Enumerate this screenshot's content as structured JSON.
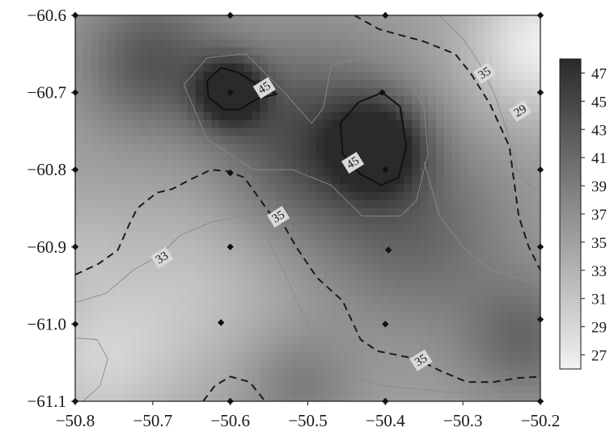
{
  "chart_data": {
    "type": "heatmap",
    "subtype": "filled-contour",
    "title": "",
    "xlabel": "",
    "ylabel": "",
    "xlim": [
      -50.8,
      -50.2
    ],
    "ylim": [
      -61.1,
      -60.6
    ],
    "x_ticks": [
      "−50.8",
      "−50.7",
      "−50.6",
      "−50.5",
      "−50.4",
      "−50.3",
      "−50.2"
    ],
    "y_ticks": [
      "−60.6",
      "−60.7",
      "−60.8",
      "−60.9",
      "−61.0",
      "−61.1"
    ],
    "colorbar": {
      "min": 26,
      "max": 48,
      "ticks": [
        "47",
        "45",
        "43",
        "41",
        "39",
        "37",
        "35",
        "33",
        "31",
        "29",
        "27"
      ],
      "color_low": "#f2f2f2",
      "color_high": "#2a2a2a"
    },
    "contour_labels": [
      {
        "text": "45",
        "x": -50.556,
        "y": -60.694,
        "level": 45
      },
      {
        "text": "45",
        "x": -50.442,
        "y": -60.791,
        "level": 45
      },
      {
        "text": "35",
        "x": -50.272,
        "y": -60.675,
        "level": 35
      },
      {
        "text": "35",
        "x": -50.538,
        "y": -60.861,
        "level": 35
      },
      {
        "text": "35",
        "x": -50.354,
        "y": -61.047,
        "level": 35
      },
      {
        "text": "33",
        "x": -50.688,
        "y": -60.914,
        "level": 33
      },
      {
        "text": "29",
        "x": -50.226,
        "y": -60.724,
        "level": 29
      }
    ],
    "sample_points": [
      {
        "x": -50.8,
        "y": -60.6
      },
      {
        "x": -50.6,
        "y": -60.6
      },
      {
        "x": -50.4,
        "y": -60.6
      },
      {
        "x": -50.2,
        "y": -60.6
      },
      {
        "x": -50.8,
        "y": -60.7
      },
      {
        "x": -50.6,
        "y": -60.7
      },
      {
        "x": -50.404,
        "y": -60.7
      },
      {
        "x": -50.2,
        "y": -60.7
      },
      {
        "x": -50.8,
        "y": -60.8
      },
      {
        "x": -50.6,
        "y": -60.804
      },
      {
        "x": -50.4,
        "y": -60.8
      },
      {
        "x": -50.2,
        "y": -60.8
      },
      {
        "x": -50.8,
        "y": -60.9
      },
      {
        "x": -50.6,
        "y": -60.9
      },
      {
        "x": -50.396,
        "y": -60.904
      },
      {
        "x": -50.2,
        "y": -60.9
      },
      {
        "x": -50.8,
        "y": -61.0
      },
      {
        "x": -50.612,
        "y": -60.998
      },
      {
        "x": -50.4,
        "y": -61.0
      },
      {
        "x": -50.2,
        "y": -60.994
      },
      {
        "x": -50.8,
        "y": -61.1
      },
      {
        "x": -50.6,
        "y": -61.1
      },
      {
        "x": -50.4,
        "y": -61.1
      },
      {
        "x": -50.2,
        "y": -61.1
      }
    ],
    "contours": [
      {
        "level": 45,
        "style": "solid",
        "points": [
          [
            -50.63,
            -60.685
          ],
          [
            -50.612,
            -60.668
          ],
          [
            -50.59,
            -60.674
          ],
          [
            -50.562,
            -60.692
          ],
          [
            -50.54,
            -60.702
          ],
          [
            -50.565,
            -60.708
          ],
          [
            -50.588,
            -60.722
          ],
          [
            -50.608,
            -60.722
          ],
          [
            -50.628,
            -60.706
          ],
          [
            -50.63,
            -60.685
          ]
        ]
      },
      {
        "level": 45,
        "style": "solid",
        "points": [
          [
            -50.404,
            -60.7
          ],
          [
            -50.435,
            -60.713
          ],
          [
            -50.458,
            -60.74
          ],
          [
            -50.455,
            -60.78
          ],
          [
            -50.432,
            -60.806
          ],
          [
            -50.405,
            -60.82
          ],
          [
            -50.383,
            -60.81
          ],
          [
            -50.373,
            -60.77
          ],
          [
            -50.381,
            -60.718
          ],
          [
            -50.404,
            -60.7
          ]
        ]
      },
      {
        "level": 35,
        "style": "dashed",
        "points": [
          [
            -50.44,
            -60.6
          ],
          [
            -50.408,
            -60.618
          ],
          [
            -50.35,
            -60.634
          ],
          [
            -50.31,
            -60.65
          ],
          [
            -50.29,
            -60.675
          ],
          [
            -50.265,
            -60.715
          ],
          [
            -50.24,
            -60.77
          ],
          [
            -50.228,
            -60.86
          ],
          [
            -50.215,
            -60.9
          ],
          [
            -50.2,
            -60.93
          ]
        ]
      },
      {
        "level": 35,
        "style": "dashed",
        "points": [
          [
            -50.8,
            -60.936
          ],
          [
            -50.77,
            -60.922
          ],
          [
            -50.745,
            -60.904
          ],
          [
            -50.73,
            -60.87
          ],
          [
            -50.72,
            -60.85
          ],
          [
            -50.695,
            -60.83
          ],
          [
            -50.675,
            -60.825
          ],
          [
            -50.65,
            -60.812
          ],
          [
            -50.625,
            -60.8
          ],
          [
            -50.603,
            -60.802
          ],
          [
            -50.582,
            -60.81
          ],
          [
            -50.55,
            -60.855
          ],
          [
            -50.532,
            -60.87
          ],
          [
            -50.515,
            -60.9
          ],
          [
            -50.488,
            -60.94
          ],
          [
            -50.455,
            -60.97
          ],
          [
            -50.432,
            -61.02
          ],
          [
            -50.41,
            -61.035
          ],
          [
            -50.36,
            -61.045
          ],
          [
            -50.33,
            -61.06
          ],
          [
            -50.295,
            -61.075
          ],
          [
            -50.26,
            -61.075
          ],
          [
            -50.23,
            -61.07
          ],
          [
            -50.2,
            -61.068
          ]
        ]
      },
      {
        "level": 35,
        "style": "dashed",
        "points": [
          [
            -50.635,
            -61.1
          ],
          [
            -50.62,
            -61.08
          ],
          [
            -50.6,
            -61.068
          ],
          [
            -50.575,
            -61.075
          ],
          [
            -50.555,
            -61.1
          ]
        ]
      },
      {
        "level": 33,
        "style": "thin",
        "points": [
          [
            -50.8,
            -60.972
          ],
          [
            -50.76,
            -60.96
          ],
          [
            -50.725,
            -60.93
          ],
          [
            -50.69,
            -60.91
          ],
          [
            -50.665,
            -60.885
          ],
          [
            -50.625,
            -60.868
          ],
          [
            -50.585,
            -60.86
          ],
          [
            -50.56,
            -60.875
          ],
          [
            -50.532,
            -60.93
          ],
          [
            -50.505,
            -60.99
          ],
          [
            -50.48,
            -61.04
          ],
          [
            -50.44,
            -61.07
          ],
          [
            -50.4,
            -61.08
          ],
          [
            -50.35,
            -61.085
          ],
          [
            -50.3,
            -61.09
          ],
          [
            -50.25,
            -61.093
          ]
        ]
      },
      {
        "level": 33,
        "style": "thin",
        "points": [
          [
            -50.8,
            -61.018
          ],
          [
            -50.772,
            -61.02
          ],
          [
            -50.758,
            -61.045
          ],
          [
            -50.768,
            -61.08
          ],
          [
            -50.79,
            -61.1
          ]
        ]
      },
      {
        "level": 39,
        "style": "thin",
        "points": [
          [
            -50.63,
            -60.76
          ],
          [
            -50.66,
            -60.69
          ],
          [
            -50.63,
            -60.655
          ],
          [
            -50.58,
            -60.65
          ],
          [
            -50.53,
            -60.7
          ],
          [
            -50.495,
            -60.74
          ],
          [
            -50.48,
            -60.72
          ],
          [
            -50.47,
            -60.665
          ],
          [
            -50.43,
            -60.655
          ],
          [
            -50.382,
            -60.66
          ],
          [
            -50.35,
            -60.72
          ],
          [
            -50.345,
            -60.78
          ],
          [
            -50.36,
            -60.84
          ],
          [
            -50.38,
            -60.86
          ],
          [
            -50.43,
            -60.86
          ],
          [
            -50.47,
            -60.82
          ],
          [
            -50.52,
            -60.8
          ],
          [
            -50.57,
            -60.8
          ],
          [
            -50.63,
            -60.76
          ]
        ]
      },
      {
        "level": 31,
        "style": "thin",
        "points": [
          [
            -50.33,
            -60.6
          ],
          [
            -50.3,
            -60.63
          ],
          [
            -50.28,
            -60.66
          ],
          [
            -50.26,
            -60.7
          ],
          [
            -50.243,
            -60.75
          ],
          [
            -50.23,
            -60.8
          ],
          [
            -50.215,
            -60.82
          ],
          [
            -50.2,
            -60.83
          ]
        ]
      },
      {
        "level": 37,
        "style": "thin",
        "points": [
          [
            -50.35,
            -60.79
          ],
          [
            -50.33,
            -60.86
          ],
          [
            -50.3,
            -60.9
          ],
          [
            -50.265,
            -60.93
          ],
          [
            -50.245,
            -60.935
          ],
          [
            -50.2,
            -60.95
          ]
        ]
      }
    ],
    "field_peaks": [
      {
        "x": -50.6,
        "y": -60.7,
        "value": 48.5,
        "spread": 0.045
      },
      {
        "x": -50.41,
        "y": -60.77,
        "value": 47.5,
        "spread": 0.06
      },
      {
        "x": -50.7,
        "y": -60.66,
        "value": 43,
        "spread": 0.09
      },
      {
        "x": -50.5,
        "y": -60.76,
        "value": 44,
        "spread": 0.12
      },
      {
        "x": -50.36,
        "y": -60.88,
        "value": 41,
        "spread": 0.12
      },
      {
        "x": -50.22,
        "y": -61.02,
        "value": 41,
        "spread": 0.08
      },
      {
        "x": -50.51,
        "y": -61.08,
        "value": 39,
        "spread": 0.07
      }
    ],
    "field_lows": [
      {
        "x": -50.2,
        "y": -60.64,
        "value": 26.5,
        "spread": 0.09
      },
      {
        "x": -50.77,
        "y": -61.05,
        "value": 30,
        "spread": 0.1
      },
      {
        "x": -50.65,
        "y": -60.95,
        "value": 31.5,
        "spread": 0.12
      },
      {
        "x": -50.8,
        "y": -60.9,
        "value": 33,
        "spread": 0.06
      }
    ],
    "field_base": 35
  },
  "colors": {
    "axis": "#1a1a1a",
    "marker": "#111111",
    "contour_solid": "#111111",
    "contour_dashed": "#1a1a1a",
    "contour_thin": "#8a8a8a",
    "label_bg": "#d9d9d9"
  }
}
